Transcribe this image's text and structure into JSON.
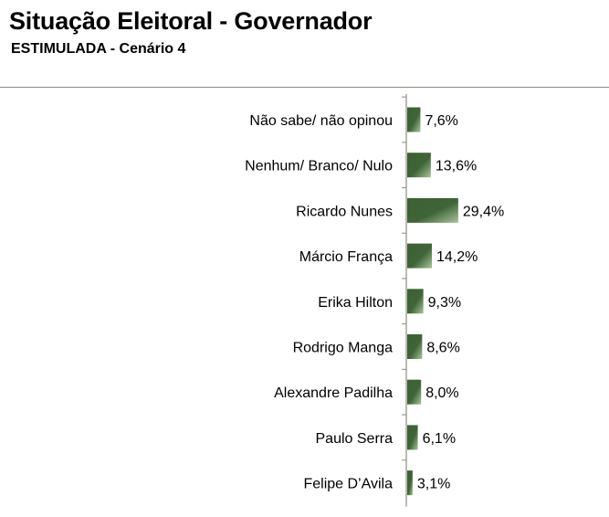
{
  "header": {
    "title": "Situação Eleitoral - Governador",
    "subtitle": "ESTIMULADA - Cenário 4"
  },
  "colors": {
    "bar_dark": "#3d6135",
    "bar_light": "#8fae82",
    "axis": "#8c8c80",
    "rule": "#8c8c80"
  },
  "chart_data": {
    "type": "bar",
    "orientation": "horizontal",
    "categories": [
      "Não sabe/ não opinou",
      "Nenhum/ Branco/ Nulo",
      "Ricardo Nunes",
      "Márcio França",
      "Erika Hilton",
      "Rodrigo Manga",
      "Alexandre Padilha",
      "Paulo Serra",
      "Felipe D’Avila"
    ],
    "values": [
      7.6,
      13.6,
      29.4,
      14.2,
      9.3,
      8.6,
      8.0,
      6.1,
      3.1
    ],
    "value_labels": [
      "7,6%",
      "13,6%",
      "29,4%",
      "14,2%",
      "9,3%",
      "8,6%",
      "8,0%",
      "6,1%",
      "3,1%"
    ],
    "xlim": [
      0,
      100
    ],
    "grid": false,
    "legend": "none"
  }
}
